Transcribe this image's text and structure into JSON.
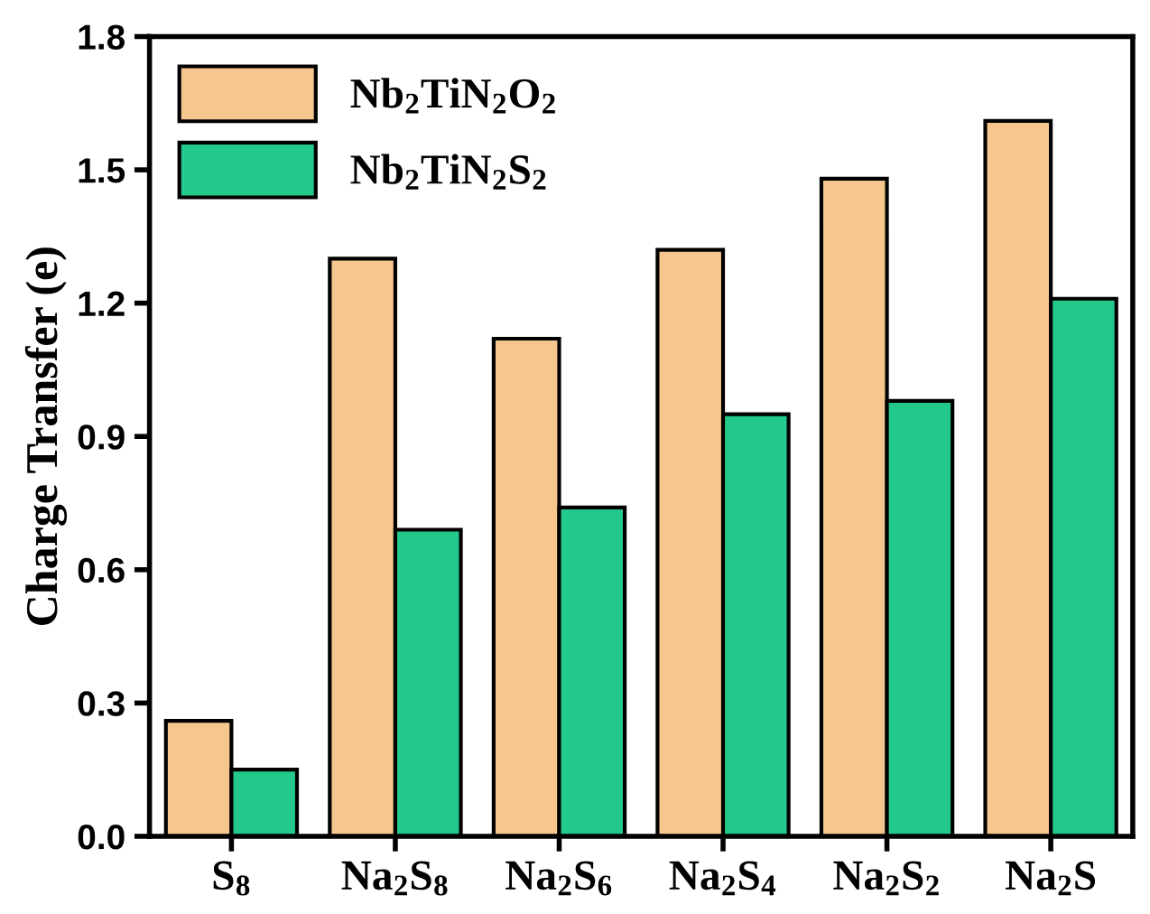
{
  "chart_data": {
    "type": "bar",
    "ylabel": "Charge Transfer (e)",
    "categories": [
      "S$_{8}$",
      "Na$_{2}$S$_{8}$",
      "Na$_{2}$S$_{6}$",
      "Na$_{2}$S$_{4}$",
      "Na$_{2}$S$_{2}$",
      "Na$_{2}$S"
    ],
    "series": [
      {
        "name": "Nb$_{2}$TiN$_{2}$O$_{2}$",
        "color": "#f5c78f",
        "values": [
          0.26,
          1.3,
          1.12,
          1.32,
          1.48,
          1.61
        ]
      },
      {
        "name": "Nb$_{2}$TiN$_{2}$S$_{2}$",
        "color": "#22c98a",
        "values": [
          0.15,
          0.69,
          0.74,
          0.95,
          0.98,
          1.21
        ]
      }
    ],
    "ylim": [
      0,
      1.8
    ],
    "yticks": [
      {
        "value": 0,
        "label": "0.0"
      },
      0.3,
      0.6,
      0.9,
      1.2,
      1.5,
      1.8
    ],
    "grid": false,
    "legend": "top left"
  }
}
